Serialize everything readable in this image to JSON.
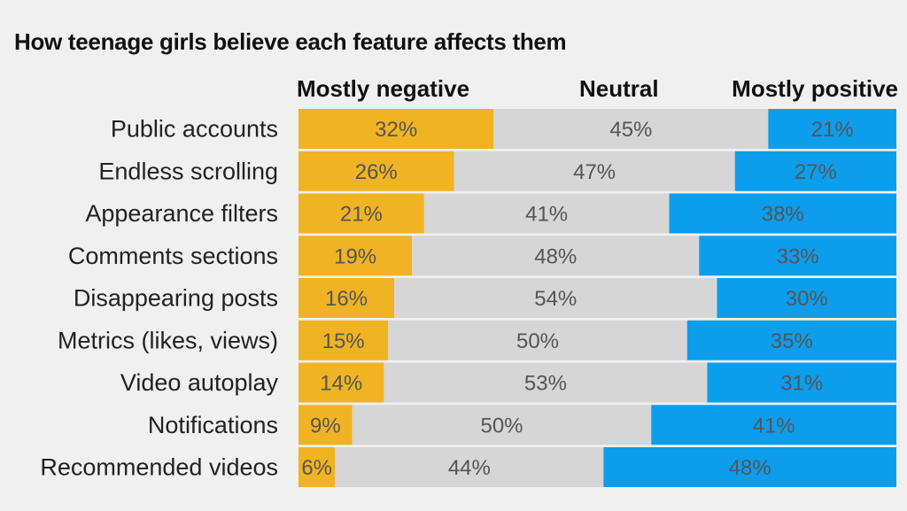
{
  "title": "How teenage girls believe each feature affects them",
  "legend": {
    "negative": "Mostly negative",
    "neutral": "Neutral",
    "positive": "Mostly positive"
  },
  "colors": {
    "negative": "#f0b323",
    "neutral": "#d6d6d6",
    "positive": "#0d9ded",
    "background": "#f0f0f0"
  },
  "chart_data": {
    "type": "bar",
    "orientation": "horizontal-stacked",
    "title": "How teenage girls believe each feature affects them",
    "categories": [
      "Public accounts",
      "Endless scrolling",
      "Appearance filters",
      "Comments sections",
      "Disappearing posts",
      "Metrics (likes, views)",
      "Video autoplay",
      "Notifications",
      "Recommended videos"
    ],
    "series": [
      {
        "name": "Mostly negative",
        "values": [
          32,
          26,
          21,
          19,
          16,
          15,
          14,
          9,
          6
        ]
      },
      {
        "name": "Neutral",
        "values": [
          45,
          47,
          41,
          48,
          54,
          50,
          53,
          50,
          44
        ]
      },
      {
        "name": "Mostly positive",
        "values": [
          21,
          27,
          38,
          33,
          30,
          35,
          31,
          41,
          48
        ]
      }
    ],
    "value_suffix": "%",
    "legend_placement": "top",
    "grid": false
  }
}
